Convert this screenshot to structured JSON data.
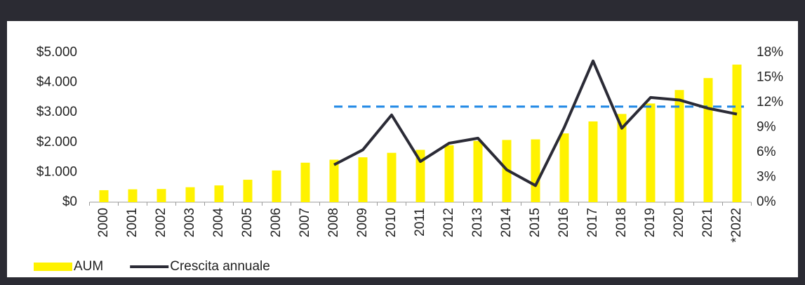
{
  "chart_data": {
    "type": "bar-line",
    "categories": [
      "2000",
      "2001",
      "2002",
      "2003",
      "2004",
      "2005",
      "2006",
      "2007",
      "2008",
      "2009",
      "2010",
      "2011",
      "2012",
      "2013",
      "2014",
      "2015",
      "2016",
      "2017",
      "2018",
      "2019",
      "2020",
      "2021",
      "*2022"
    ],
    "series": [
      {
        "name": "AUM",
        "type": "bar",
        "color": "#fff200",
        "values": [
          400,
          430,
          440,
          500,
          560,
          750,
          1060,
          1320,
          1420,
          1500,
          1650,
          1750,
          1900,
          2050,
          2080,
          2100,
          2300,
          2700,
          2950,
          3300,
          3750,
          4150,
          4600
        ]
      },
      {
        "name": "Crescita annuale",
        "type": "line",
        "axis": "y2",
        "color": "#2b2b36",
        "values": [
          null,
          null,
          null,
          null,
          null,
          null,
          null,
          null,
          4.5,
          6.3,
          10.5,
          4.9,
          7.1,
          7.7,
          3.9,
          2.0,
          9.0,
          17.0,
          8.9,
          12.6,
          12.3,
          11.3,
          10.6
        ]
      }
    ],
    "ylim": [
      0,
      5000
    ],
    "yticks": [
      {
        "value": 0,
        "label": "$0"
      },
      {
        "value": 1000,
        "label": "$1.000"
      },
      {
        "value": 2000,
        "label": "$2.000"
      },
      {
        "value": 3000,
        "label": "$3.000"
      },
      {
        "value": 4000,
        "label": "$4.000"
      },
      {
        "value": 5000,
        "label": "$5.000"
      }
    ],
    "y2lim": [
      0,
      18
    ],
    "y2ticks": [
      {
        "value": 0,
        "label": "0%"
      },
      {
        "value": 3,
        "label": "3%"
      },
      {
        "value": 6,
        "label": "6%"
      },
      {
        "value": 9,
        "label": "9%"
      },
      {
        "value": 12,
        "label": "12%"
      },
      {
        "value": 15,
        "label": "15%"
      },
      {
        "value": 18,
        "label": "18%"
      }
    ],
    "reference_line": {
      "value": 11.5,
      "axis": "y2",
      "color": "#1e88e5",
      "from": "2008",
      "to": "*2022"
    },
    "legend": "bottom-left"
  }
}
